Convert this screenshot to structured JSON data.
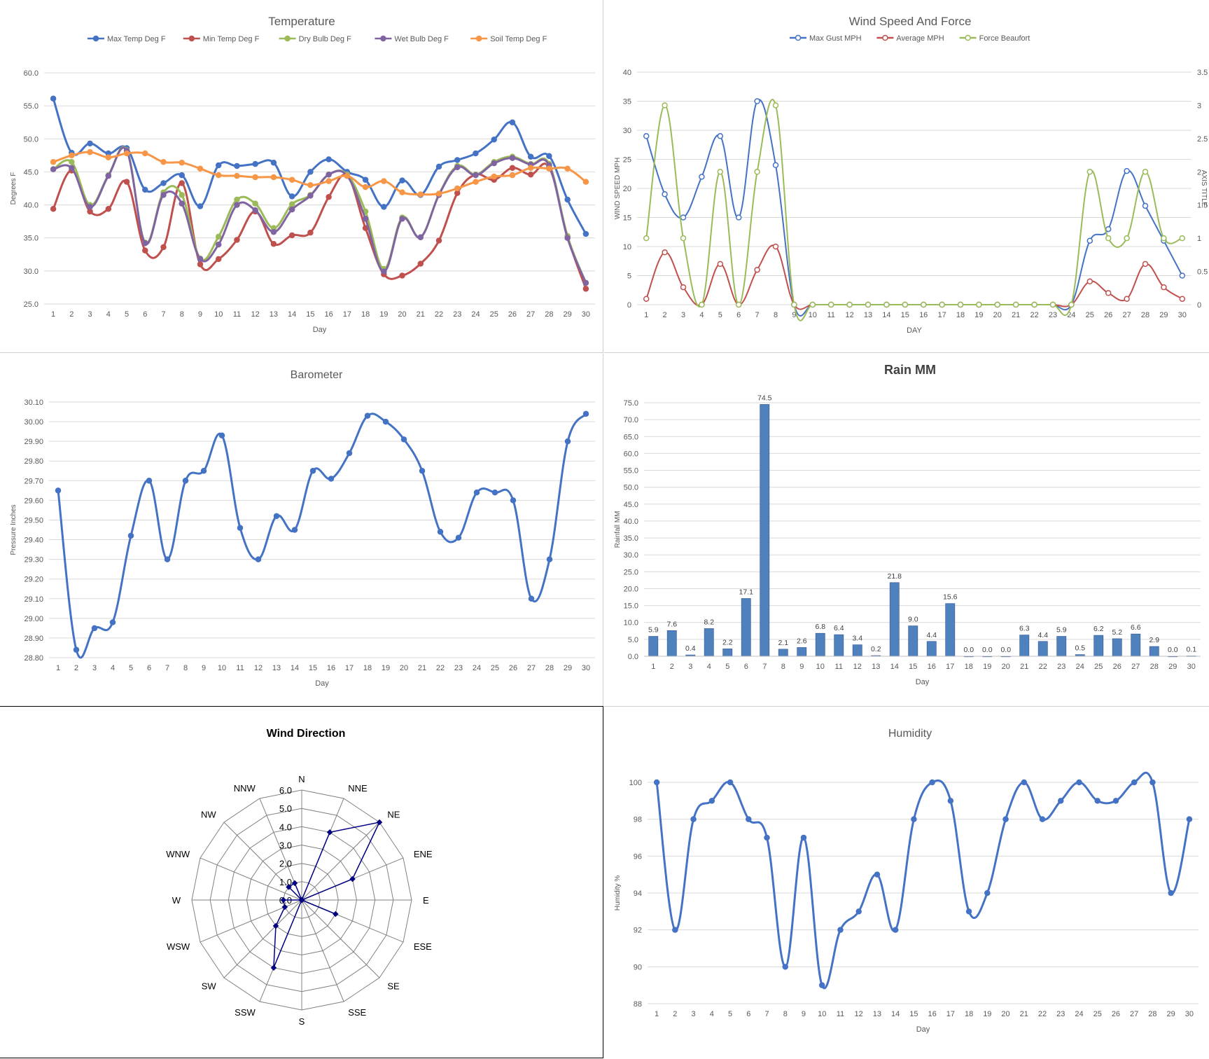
{
  "charts": {
    "temperature": {
      "chart_data": {
        "type": "line",
        "title": "Temperature",
        "xlabel": "Day",
        "ylabel": "Degrees F",
        "ylim": [
          25.0,
          60.0
        ],
        "yticks": [
          "60.0",
          "55.0",
          "50.0",
          "45.0",
          "40.0",
          "35.0",
          "30.0",
          "25.0"
        ],
        "categories": [
          "1",
          "2",
          "3",
          "4",
          "5",
          "6",
          "7",
          "8",
          "9",
          "10",
          "11",
          "12",
          "13",
          "14",
          "15",
          "16",
          "17",
          "18",
          "19",
          "20",
          "21",
          "22",
          "23",
          "24",
          "25",
          "26",
          "27",
          "28",
          "29",
          "30"
        ],
        "legend_position": "top",
        "grid": true,
        "series": [
          {
            "name": "Max Temp Deg F",
            "color": "#4472C4",
            "values": [
              56.1,
              47.9,
              49.3,
              47.8,
              48.6,
              42.3,
              43.3,
              44.5,
              39.8,
              46.0,
              45.9,
              46.2,
              46.4,
              41.3,
              45.0,
              46.9,
              45.0,
              43.8,
              39.7,
              43.7,
              41.5,
              45.8,
              46.8,
              47.8,
              49.9,
              52.5,
              47.3,
              47.4,
              40.8,
              35.6
            ]
          },
          {
            "name": "Min Temp Deg F",
            "color": "#C0504D",
            "values": [
              39.4,
              45.2,
              39.0,
              39.4,
              43.5,
              33.1,
              33.6,
              43.3,
              31.0,
              31.8,
              34.7,
              39.0,
              34.1,
              35.4,
              35.8,
              41.2,
              44.4,
              36.5,
              29.5,
              29.3,
              31.1,
              34.6,
              41.8,
              44.6,
              43.8,
              45.6,
              44.6,
              45.7,
              35.2,
              27.3
            ]
          },
          {
            "name": "Dry Bulb Deg F",
            "color": "#9BBB59",
            "values": [
              45.4,
              46.5,
              40.0,
              44.5,
              48.3,
              34.3,
              41.9,
              41.5,
              31.9,
              35.2,
              40.8,
              40.2,
              36.5,
              40.1,
              41.5,
              44.6,
              44.6,
              39.0,
              30.3,
              38.1,
              35.1,
              41.6,
              45.9,
              44.6,
              46.5,
              47.3,
              46.2,
              46.2,
              35.3,
              28.2
            ]
          },
          {
            "name": "Wet Bulb Deg F",
            "color": "#8064A2",
            "values": [
              45.4,
              45.6,
              39.7,
              44.4,
              48.2,
              34.2,
              41.5,
              40.2,
              31.8,
              34.0,
              40.0,
              39.2,
              35.9,
              39.3,
              41.4,
              44.6,
              44.4,
              37.9,
              29.9,
              37.9,
              35.1,
              41.5,
              45.7,
              44.5,
              46.3,
              47.1,
              46.1,
              46.0,
              35.0,
              28.2
            ]
          },
          {
            "name": "Soil Temp Deg F",
            "color": "#F79646",
            "values": [
              46.5,
              47.5,
              48.0,
              47.2,
              47.8,
              47.8,
              46.5,
              46.4,
              45.5,
              44.5,
              44.4,
              44.2,
              44.2,
              43.8,
              43.0,
              43.6,
              44.4,
              42.7,
              43.6,
              41.9,
              41.6,
              41.7,
              42.5,
              43.5,
              44.3,
              44.5,
              45.6,
              45.5,
              45.5,
              43.5
            ]
          }
        ]
      }
    },
    "wind": {
      "chart_data": {
        "type": "line",
        "title": "Wind Speed And Force",
        "xlabel": "DAY",
        "ylabel": "WIND SPEED MPH",
        "y2label": "AXIS TITLE",
        "ylim": [
          0,
          40
        ],
        "y2lim": [
          0,
          3.5
        ],
        "yticks": [
          "40",
          "35",
          "30",
          "25",
          "20",
          "15",
          "10",
          "5",
          "0"
        ],
        "y2ticks": [
          "3.5",
          "3",
          "2.5",
          "2",
          "1.5",
          "1",
          "0.5",
          "0"
        ],
        "categories": [
          "1",
          "2",
          "3",
          "4",
          "5",
          "6",
          "7",
          "8",
          "9",
          "10",
          "11",
          "12",
          "13",
          "14",
          "15",
          "16",
          "17",
          "18",
          "19",
          "20",
          "21",
          "22",
          "23",
          "24",
          "25",
          "26",
          "27",
          "28",
          "29",
          "30"
        ],
        "legend_position": "top",
        "grid": true,
        "series": [
          {
            "name": "Max Gust MPH",
            "color": "#4472C4",
            "axis": "left",
            "values": [
              29,
              19,
              15,
              22,
              29,
              15,
              35,
              24,
              0,
              0,
              0,
              0,
              0,
              0,
              0,
              0,
              0,
              0,
              0,
              0,
              0,
              0,
              0,
              0,
              11,
              13,
              23,
              17,
              11,
              5
            ]
          },
          {
            "name": "Average MPH",
            "color": "#C0504D",
            "axis": "left",
            "values": [
              1,
              9,
              3,
              0,
              7,
              0,
              6,
              10,
              0,
              0,
              0,
              0,
              0,
              0,
              0,
              0,
              0,
              0,
              0,
              0,
              0,
              0,
              0,
              0,
              4,
              2,
              1,
              7,
              3,
              1
            ]
          },
          {
            "name": "Force Beaufort",
            "color": "#9BBB59",
            "axis": "right",
            "values": [
              1,
              3,
              1,
              0,
              2,
              0,
              2,
              3,
              0,
              0,
              0,
              0,
              0,
              0,
              0,
              0,
              0,
              0,
              0,
              0,
              0,
              0,
              0,
              0,
              2,
              1,
              1,
              2,
              1,
              1
            ]
          }
        ]
      }
    },
    "barometer": {
      "chart_data": {
        "type": "line",
        "title": "Barometer",
        "xlabel": "Day",
        "ylabel": "Pressure Inches",
        "ylim": [
          28.8,
          30.1
        ],
        "yticks": [
          "30.10",
          "30.00",
          "29.90",
          "29.80",
          "29.70",
          "29.60",
          "29.50",
          "29.40",
          "29.30",
          "29.20",
          "29.10",
          "29.00",
          "28.90",
          "28.80"
        ],
        "categories": [
          "1",
          "2",
          "3",
          "4",
          "5",
          "6",
          "7",
          "8",
          "9",
          "10",
          "11",
          "12",
          "13",
          "14",
          "15",
          "16",
          "17",
          "18",
          "19",
          "20",
          "21",
          "22",
          "23",
          "24",
          "25",
          "26",
          "27",
          "28",
          "29",
          "30"
        ],
        "grid": true,
        "series": [
          {
            "name": "",
            "color": "#4472C4",
            "values": [
              29.65,
              28.84,
              28.95,
              28.98,
              29.42,
              29.7,
              29.3,
              29.7,
              29.75,
              29.93,
              29.46,
              29.3,
              29.52,
              29.45,
              29.75,
              29.71,
              29.84,
              30.03,
              30.0,
              29.91,
              29.75,
              29.44,
              29.41,
              29.64,
              29.64,
              29.6,
              29.1,
              29.3,
              29.9,
              30.04
            ]
          }
        ]
      }
    },
    "rain": {
      "chart_data": {
        "type": "bar",
        "title": "Rain MM",
        "xlabel": "Day",
        "ylabel": "Rainfall MM",
        "ylim": [
          0,
          75
        ],
        "yticks": [
          "75.0",
          "70.0",
          "65.0",
          "60.0",
          "55.0",
          "50.0",
          "45.0",
          "40.0",
          "35.0",
          "30.0",
          "25.0",
          "20.0",
          "15.0",
          "10.0",
          "5.0",
          "0.0"
        ],
        "categories": [
          "1",
          "2",
          "3",
          "4",
          "5",
          "6",
          "7",
          "8",
          "9",
          "10",
          "11",
          "12",
          "13",
          "14",
          "15",
          "16",
          "17",
          "18",
          "19",
          "20",
          "21",
          "22",
          "23",
          "24",
          "25",
          "26",
          "27",
          "28",
          "29",
          "30"
        ],
        "grid": true,
        "series": [
          {
            "name": "",
            "color": "#4F81BD",
            "values": [
              5.9,
              7.6,
              0.4,
              8.2,
              2.2,
              17.1,
              74.5,
              2.1,
              2.6,
              6.8,
              6.4,
              3.4,
              0.2,
              21.8,
              9.0,
              4.4,
              15.6,
              0.0,
              0.0,
              0.0,
              6.3,
              4.4,
              5.9,
              0.5,
              6.2,
              5.2,
              6.6,
              2.9,
              0.0,
              0.1
            ]
          }
        ],
        "data_labels": [
          "5.9",
          "7.6",
          "0.4",
          "8.2",
          "2.2",
          "17.1",
          "74.5",
          "2.1",
          "2.6",
          "6.8",
          "6.4",
          "3.4",
          "0.2",
          "21.8",
          "9.0",
          "4.4",
          "15.6",
          "0.0",
          "0.0",
          "0.0",
          "6.3",
          "4.4",
          "5.9",
          "0.5",
          "6.2",
          "5.2",
          "6.6",
          "2.9",
          "0.0",
          "0.1"
        ]
      }
    },
    "direction": {
      "chart_data": {
        "type": "radar",
        "title": "Wind Direction",
        "categories": [
          "N",
          "NNE",
          "NE",
          "ENE",
          "E",
          "ESE",
          "SE",
          "SSE",
          "S",
          "SSW",
          "SW",
          "WSW",
          "W",
          "WNW",
          "NW",
          "NNW"
        ],
        "rlim": [
          0,
          6
        ],
        "rticks": [
          "0.0",
          "1.0",
          "2.0",
          "3.0",
          "4.0",
          "5.0",
          "6.0"
        ],
        "grid": true,
        "series": [
          {
            "name": "",
            "color": "#000080",
            "values": [
              0,
              4,
              6,
              3,
              0,
              2,
              0,
              0,
              0,
              4,
              2,
              1,
              1,
              0,
              1,
              1
            ]
          }
        ]
      }
    },
    "humidity": {
      "chart_data": {
        "type": "line",
        "title": "Humidity",
        "xlabel": "Day",
        "ylabel": "Humidity %",
        "ylim": [
          88,
          100
        ],
        "yticks": [
          "100",
          "98",
          "96",
          "94",
          "92",
          "90",
          "88"
        ],
        "categories": [
          "1",
          "2",
          "3",
          "4",
          "5",
          "6",
          "7",
          "8",
          "9",
          "10",
          "11",
          "12",
          "13",
          "14",
          "15",
          "16",
          "17",
          "18",
          "19",
          "20",
          "21",
          "22",
          "23",
          "24",
          "25",
          "26",
          "27",
          "28",
          "29",
          "30"
        ],
        "grid": true,
        "series": [
          {
            "name": "",
            "color": "#4472C4",
            "values": [
              100,
              92,
              98,
              99,
              100,
              98,
              97,
              90,
              97,
              89,
              92,
              93,
              95,
              92,
              98,
              100,
              99,
              93,
              94,
              98,
              100,
              98,
              99,
              100,
              99,
              99,
              100,
              100,
              94,
              98
            ]
          }
        ]
      }
    }
  }
}
